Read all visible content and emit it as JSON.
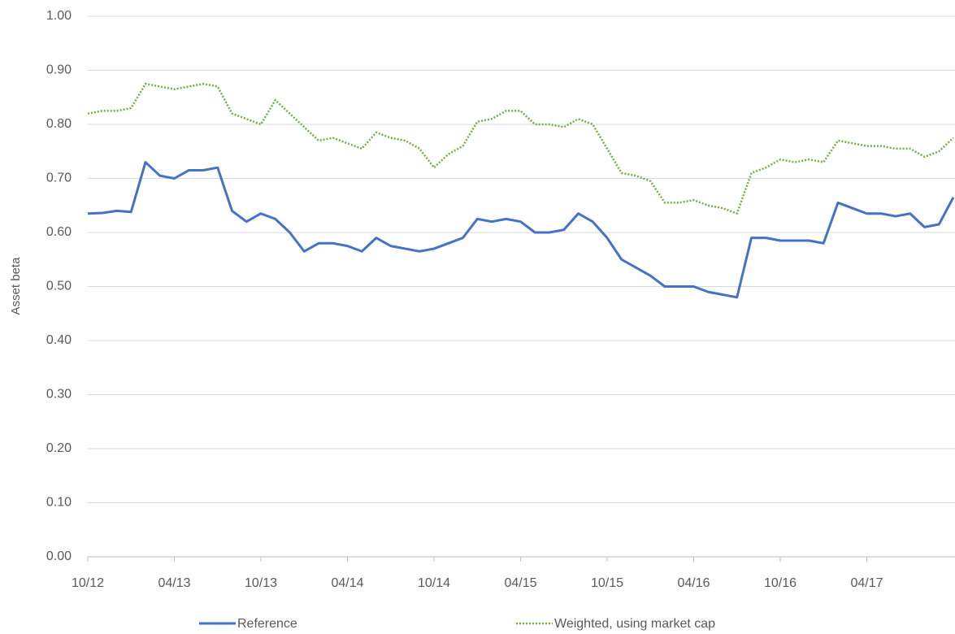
{
  "chart_data": {
    "type": "line",
    "y_label": "Asset beta",
    "x": [
      "10/12",
      "11/12",
      "12/12",
      "01/13",
      "02/13",
      "03/13",
      "04/13",
      "05/13",
      "06/13",
      "07/13",
      "08/13",
      "09/13",
      "10/13",
      "11/13",
      "12/13",
      "01/14",
      "02/14",
      "03/14",
      "04/14",
      "05/14",
      "06/14",
      "07/14",
      "08/14",
      "09/14",
      "10/14",
      "11/14",
      "12/14",
      "01/15",
      "02/15",
      "03/15",
      "04/15",
      "05/15",
      "06/15",
      "07/15",
      "08/15",
      "09/15",
      "10/15",
      "11/15",
      "12/15",
      "01/16",
      "02/16",
      "03/16",
      "04/16",
      "05/16",
      "06/16",
      "07/16",
      "08/16",
      "09/16",
      "10/16",
      "11/16",
      "12/16",
      "01/17",
      "02/17",
      "03/17",
      "04/17",
      "05/17",
      "06/17",
      "07/17",
      "08/17",
      "09/17",
      "10/17"
    ],
    "xticks": [
      "10/12",
      "04/13",
      "10/13",
      "04/14",
      "10/14",
      "04/15",
      "10/15",
      "04/16",
      "10/16",
      "04/17"
    ],
    "series": [
      {
        "name": "Reference",
        "color": "#4472c4",
        "dash": "solid",
        "values": [
          0.635,
          0.636,
          0.64,
          0.638,
          0.73,
          0.705,
          0.7,
          0.715,
          0.715,
          0.72,
          0.64,
          0.62,
          0.635,
          0.625,
          0.6,
          0.565,
          0.58,
          0.58,
          0.575,
          0.565,
          0.59,
          0.575,
          0.57,
          0.565,
          0.57,
          0.58,
          0.59,
          0.625,
          0.62,
          0.625,
          0.62,
          0.6,
          0.6,
          0.605,
          0.635,
          0.62,
          0.59,
          0.55,
          0.535,
          0.52,
          0.5,
          0.5,
          0.5,
          0.49,
          0.485,
          0.48,
          0.59,
          0.59,
          0.585,
          0.585,
          0.585,
          0.58,
          0.655,
          0.645,
          0.635,
          0.635,
          0.63,
          0.635,
          0.61,
          0.615,
          0.665
        ]
      },
      {
        "name": "Weighted, using market cap",
        "color": "#70ad47",
        "dash": "dotted",
        "values": [
          0.82,
          0.825,
          0.825,
          0.83,
          0.875,
          0.87,
          0.865,
          0.87,
          0.875,
          0.87,
          0.82,
          0.81,
          0.8,
          0.845,
          0.82,
          0.795,
          0.77,
          0.775,
          0.765,
          0.755,
          0.785,
          0.775,
          0.77,
          0.755,
          0.72,
          0.745,
          0.76,
          0.805,
          0.81,
          0.825,
          0.825,
          0.8,
          0.8,
          0.795,
          0.81,
          0.8,
          0.755,
          0.71,
          0.705,
          0.695,
          0.655,
          0.655,
          0.66,
          0.65,
          0.645,
          0.635,
          0.71,
          0.72,
          0.735,
          0.73,
          0.735,
          0.73,
          0.77,
          0.765,
          0.76,
          0.76,
          0.755,
          0.755,
          0.74,
          0.75,
          0.775
        ]
      }
    ],
    "ylim": [
      0,
      1
    ],
    "yticks": [
      {
        "value": 0,
        "label": "0.00"
      },
      {
        "value": 0.1,
        "label": "0.10"
      },
      {
        "value": 0.2,
        "label": "0.20"
      },
      {
        "value": 0.3,
        "label": "0.30"
      },
      {
        "value": 0.4,
        "label": "0.40"
      },
      {
        "value": 0.5,
        "label": "0.50"
      },
      {
        "value": 0.6,
        "label": "0.60"
      },
      {
        "value": 0.7,
        "label": "0.70"
      },
      {
        "value": 0.8,
        "label": "0.80"
      },
      {
        "value": 0.9,
        "label": "0.90"
      },
      {
        "value": 1,
        "label": "1.00"
      }
    ],
    "grid": true,
    "legend": "bottom"
  }
}
